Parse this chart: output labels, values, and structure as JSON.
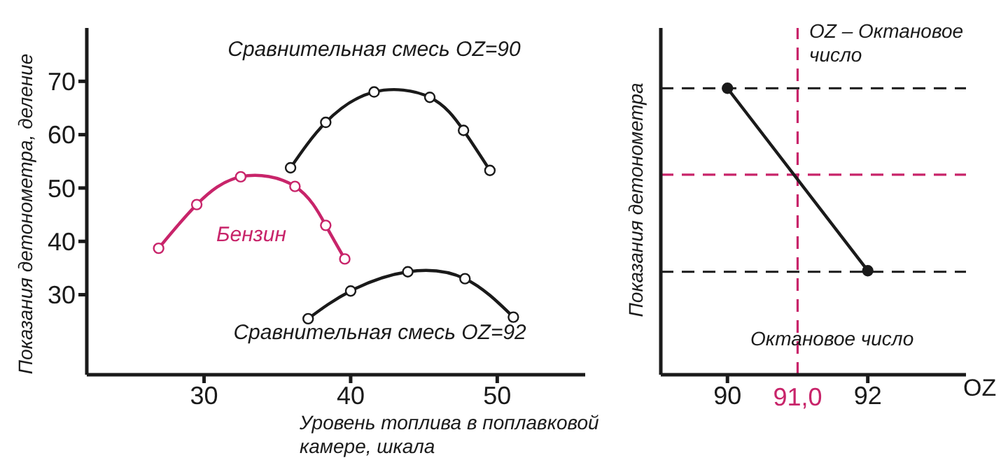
{
  "chart_data": [
    {
      "type": "line",
      "xlabel": "Уровень топлива в поплавковой камере, шкала",
      "ylabel": "Показания детонометра, деление",
      "xlim": [
        22,
        56
      ],
      "xticks": [
        30,
        40,
        50
      ],
      "ylim": [
        15,
        80
      ],
      "yticks": [
        30,
        40,
        50,
        60,
        70
      ],
      "grid": false,
      "legend": false,
      "marker": "circle",
      "line_style": "solid",
      "series": [
        {
          "name": "Бензин",
          "color": "#c8246a",
          "x": [
            26.9,
            29.5,
            32.5,
            36.2,
            38.3,
            39.6
          ],
          "values": [
            38.7,
            46.9,
            52.1,
            50.3,
            43,
            36.7
          ]
        },
        {
          "name": "Сравнительная смесь OZ=90",
          "color": "#1a1a1a",
          "x": [
            35.9,
            38.3,
            41.6,
            45.4,
            47.7,
            49.5
          ],
          "values": [
            53.8,
            62.3,
            68,
            67,
            60.8,
            53.3
          ]
        },
        {
          "name": "Сравнительная смесь OZ=92",
          "color": "#1a1a1a",
          "x": [
            37.1,
            40,
            43.9,
            47.8,
            51.1
          ],
          "values": [
            25.5,
            30.7,
            34.3,
            33,
            25.8
          ]
        }
      ]
    },
    {
      "type": "line",
      "xlabel": "OZ",
      "ylabel": "Показания детонометра",
      "xlim": [
        89.05,
        93.4
      ],
      "xticks": [
        90,
        92
      ],
      "ylim": [
        15,
        80
      ],
      "tick_labels": "x",
      "grid": false,
      "legend": false,
      "marker": "circle",
      "line_style": "solid",
      "annotations": [
        "OZ – Октановое число",
        "Октановое число"
      ],
      "ref_lines": [
        {
          "axis": "y",
          "value": 68.7,
          "color": "#1a1a1a",
          "line_style": "dashed"
        },
        {
          "axis": "y",
          "value": 52.5,
          "color": "#c8246a",
          "line_style": "dashed"
        },
        {
          "axis": "y",
          "value": 34.3,
          "color": "#1a1a1a",
          "line_style": "dashed"
        },
        {
          "axis": "x",
          "value": 91,
          "label": "91,0",
          "color": "#c8246a",
          "line_style": "dashed"
        }
      ],
      "series": [
        {
          "color": "#1a1a1a",
          "x": [
            90,
            92
          ],
          "values": [
            68.7,
            34.5
          ]
        }
      ]
    }
  ]
}
